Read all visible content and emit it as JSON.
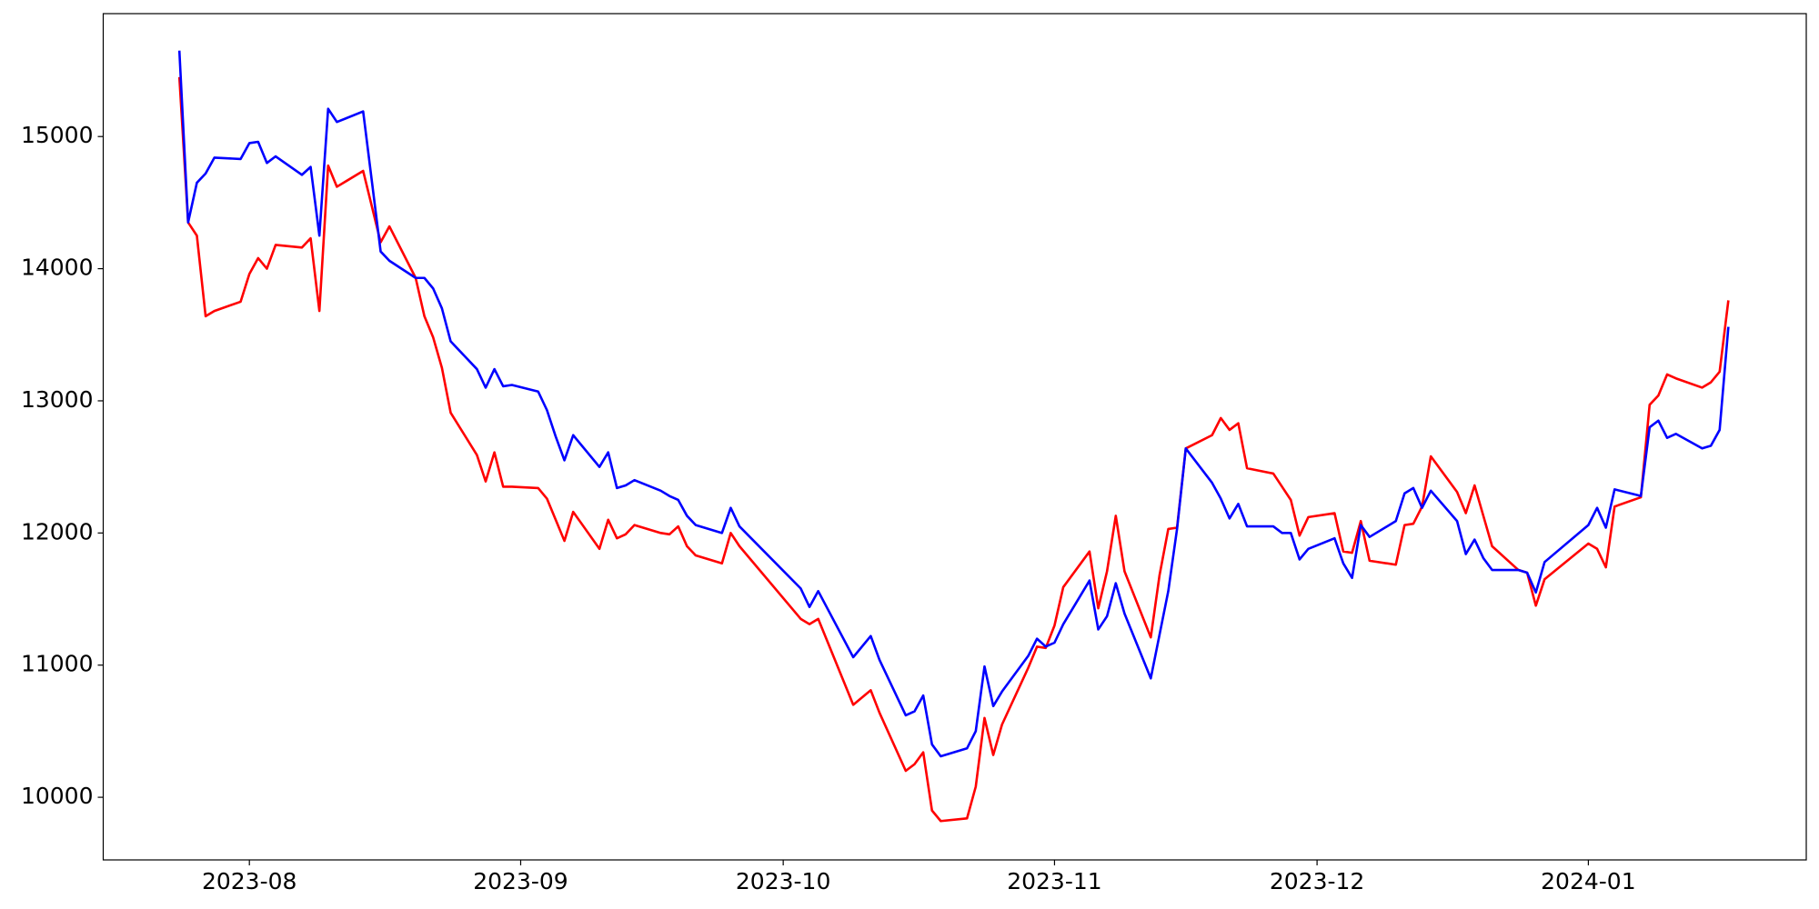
{
  "chart_data": {
    "type": "line",
    "x": [
      19562,
      19563,
      19564,
      19565,
      19566,
      19569,
      19570,
      19571,
      19572,
      19573,
      19576,
      19577,
      19578,
      19579,
      19580,
      19583,
      19585,
      19586,
      19589,
      19590,
      19591,
      19592,
      19593,
      19596,
      19597,
      19598,
      19599,
      19600,
      19603,
      19604,
      19605,
      19606,
      19607,
      19610,
      19611,
      19612,
      19613,
      19614,
      19617,
      19618,
      19619,
      19620,
      19621,
      19624,
      19625,
      19626,
      19633,
      19634,
      19635,
      19639,
      19641,
      19642,
      19645,
      19646,
      19647,
      19648,
      19649,
      19652,
      19653,
      19654,
      19655,
      19656,
      19659,
      19660,
      19661,
      19662,
      19663,
      19666,
      19667,
      19668,
      19669,
      19670,
      19673,
      19674,
      19675,
      19676,
      19677,
      19680,
      19681,
      19682,
      19683,
      19684,
      19687,
      19688,
      19689,
      19690,
      19691,
      19694,
      19695,
      19696,
      19697,
      19698,
      19701,
      19702,
      19703,
      19704,
      19705,
      19708,
      19709,
      19710,
      19711,
      19712,
      19715,
      19716,
      19717,
      19718,
      19723,
      19724,
      19725,
      19726,
      19729,
      19730,
      19731,
      19732,
      19733,
      19736,
      19737,
      19738,
      19739
    ],
    "series": [
      {
        "color": "#ff0000",
        "values": [
          15450,
          14350,
          14250,
          13640,
          13680,
          13750,
          13960,
          14080,
          14000,
          14180,
          14160,
          14230,
          13680,
          14780,
          14620,
          14740,
          14200,
          14320,
          13930,
          13640,
          13480,
          13250,
          12910,
          12590,
          12390,
          12610,
          12350,
          12350,
          12340,
          12260,
          12100,
          11940,
          12160,
          11880,
          12100,
          11960,
          11990,
          12060,
          12000,
          11990,
          12050,
          11900,
          11830,
          11770,
          12000,
          11900,
          11350,
          11310,
          11350,
          10700,
          10810,
          10640,
          10200,
          10250,
          10340,
          9900,
          9820,
          9840,
          10080,
          10600,
          10320,
          10550,
          10980,
          11140,
          11130,
          11300,
          11590,
          11860,
          11430,
          11710,
          12130,
          11710,
          11210,
          11680,
          12030,
          12040,
          12640,
          12740,
          12870,
          12780,
          12830,
          12490,
          12450,
          12350,
          12250,
          11980,
          12120,
          12150,
          11860,
          11850,
          12090,
          11790,
          11760,
          12060,
          12070,
          12200,
          12580,
          12310,
          12150,
          12360,
          12130,
          11900,
          11720,
          11700,
          11450,
          11650,
          11920,
          11880,
          11740,
          12200,
          12270,
          12970,
          13040,
          13200,
          13170,
          13100,
          13140,
          13220,
          13760
        ]
      },
      {
        "color": "#0000ff",
        "values": [
          15650,
          14350,
          14650,
          14720,
          14840,
          14830,
          14950,
          14960,
          14800,
          14850,
          14710,
          14770,
          14250,
          15210,
          15110,
          15190,
          14130,
          14060,
          13930,
          13930,
          13850,
          13700,
          13450,
          13240,
          13100,
          13240,
          13110,
          13120,
          13070,
          12930,
          12730,
          12550,
          12740,
          12500,
          12610,
          12340,
          12360,
          12400,
          12320,
          12280,
          12250,
          12130,
          12060,
          12000,
          12190,
          12050,
          11580,
          11440,
          11560,
          11060,
          11220,
          11040,
          10620,
          10650,
          10770,
          10400,
          10310,
          10370,
          10500,
          10990,
          10690,
          10800,
          11070,
          11200,
          11140,
          11170,
          11310,
          11640,
          11270,
          11370,
          11620,
          11390,
          10900,
          11230,
          11560,
          12030,
          12640,
          12380,
          12260,
          12110,
          12220,
          12050,
          12050,
          12000,
          12000,
          11800,
          11880,
          11960,
          11770,
          11660,
          12060,
          11970,
          12090,
          12300,
          12340,
          12190,
          12320,
          12090,
          11840,
          11950,
          11810,
          11720,
          11720,
          11700,
          11550,
          11780,
          12060,
          12190,
          12040,
          12330,
          12280,
          12800,
          12850,
          12720,
          12750,
          12640,
          12660,
          12780,
          13560
        ]
      }
    ],
    "xlim": [
      19553.3,
      19747.9
    ],
    "xticks": [
      {
        "value": 19570,
        "label": "2023-08"
      },
      {
        "value": 19601,
        "label": "2023-09"
      },
      {
        "value": 19631,
        "label": "2023-10"
      },
      {
        "value": 19662,
        "label": "2023-11"
      },
      {
        "value": 19692,
        "label": "2023-12"
      },
      {
        "value": 19723,
        "label": "2024-01"
      }
    ],
    "ylim": [
      9526,
      15930
    ],
    "yticks": [
      10000,
      11000,
      12000,
      13000,
      14000,
      15000
    ],
    "grid": false
  }
}
